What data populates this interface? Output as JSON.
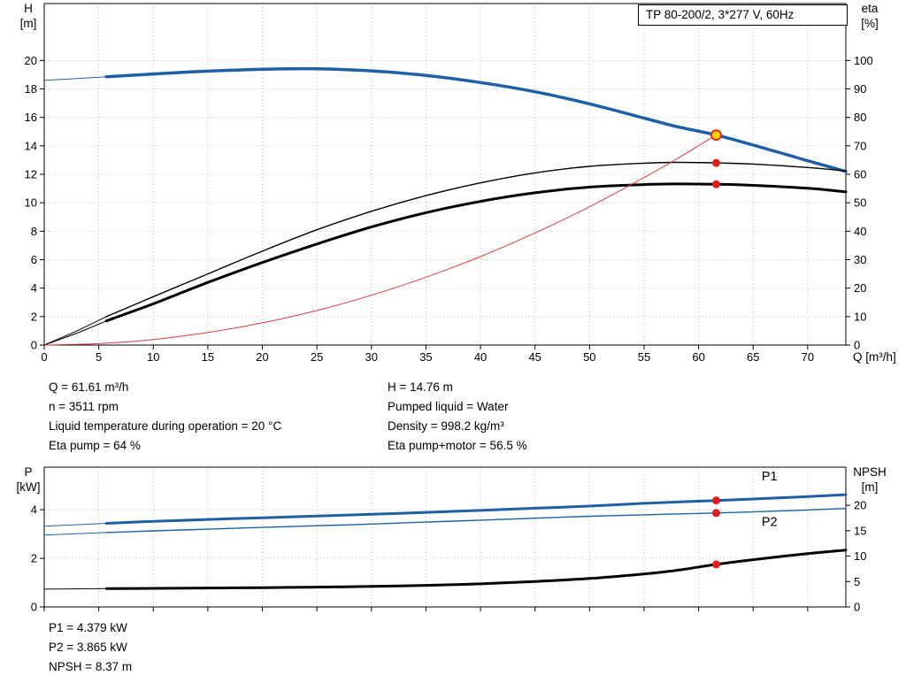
{
  "title_box": "TP 80-200/2, 3*277 V, 60Hz",
  "details": {
    "left": [
      "Q = 61.61 m³/h",
      "n = 3511 rpm",
      "Liquid temperature during operation = 20 °C",
      "Eta pump = 64 %"
    ],
    "right": [
      "H = 14.76 m",
      "Pumped liquid = Water",
      "Density = 998.2 kg/m³",
      "Eta pump+motor = 56.5 %"
    ]
  },
  "results": [
    "P1 = 4.379 kW",
    "P2 = 3.865 kW",
    "NPSH = 8.37 m"
  ],
  "chart_data": [
    {
      "type": "line",
      "name": "hq-performance-chart",
      "title": "TP 80-200/2, 3*277 V, 60Hz",
      "x": {
        "label": "Q [m³/h]",
        "min": 0,
        "max": 73.5,
        "ticks": [
          0,
          5,
          10,
          15,
          20,
          25,
          30,
          35,
          40,
          45,
          50,
          55,
          60,
          65,
          70
        ],
        "show_tick_labels": true
      },
      "y_left": {
        "label": "H",
        "unit": "[m]",
        "min": 0,
        "max": 24,
        "ticks": [
          0,
          2,
          4,
          6,
          8,
          10,
          12,
          14,
          16,
          18,
          20
        ]
      },
      "y_right": {
        "label": "eta",
        "unit": "[%]",
        "min": 0,
        "max": 120,
        "ticks": [
          0,
          10,
          20,
          30,
          40,
          50,
          60,
          70,
          80,
          90,
          100
        ]
      },
      "grid": true,
      "series": [
        {
          "name": "head-curve",
          "axis": "left",
          "color": "#1F5FA8",
          "width": 3.5,
          "solid_from": 5.7,
          "points": [
            [
              0,
              18.6
            ],
            [
              3,
              18.73
            ],
            [
              5.7,
              18.85
            ],
            [
              10,
              19.05
            ],
            [
              15,
              19.25
            ],
            [
              20,
              19.38
            ],
            [
              23,
              19.42
            ],
            [
              26,
              19.4
            ],
            [
              30,
              19.27
            ],
            [
              35,
              18.95
            ],
            [
              40,
              18.45
            ],
            [
              45,
              17.8
            ],
            [
              50,
              16.95
            ],
            [
              55,
              15.95
            ],
            [
              58,
              15.35
            ],
            [
              61.61,
              14.76
            ],
            [
              65,
              14.05
            ],
            [
              68,
              13.4
            ],
            [
              70,
              12.95
            ],
            [
              73.5,
              12.2
            ]
          ]
        },
        {
          "name": "eta-pump",
          "axis": "right",
          "color": "#000000",
          "width": 1.4,
          "solid_from": 5.7,
          "points": [
            [
              0,
              0
            ],
            [
              3,
              5
            ],
            [
              5.7,
              10
            ],
            [
              10,
              17
            ],
            [
              15,
              25
            ],
            [
              20,
              33
            ],
            [
              25,
              40.5
            ],
            [
              30,
              47
            ],
            [
              35,
              52.5
            ],
            [
              40,
              57
            ],
            [
              45,
              60.5
            ],
            [
              50,
              62.8
            ],
            [
              55,
              63.9
            ],
            [
              58,
              64.2
            ],
            [
              61.61,
              64
            ],
            [
              65,
              63.6
            ],
            [
              70,
              62.4
            ],
            [
              73.5,
              61.2
            ]
          ]
        },
        {
          "name": "eta-pump-motor",
          "axis": "right",
          "color": "#000000",
          "width": 3,
          "solid_from": 5.7,
          "points": [
            [
              0,
              0
            ],
            [
              3,
              4.2
            ],
            [
              5.7,
              8.5
            ],
            [
              10,
              14.5
            ],
            [
              15,
              22
            ],
            [
              20,
              29
            ],
            [
              25,
              35.5
            ],
            [
              30,
              41.5
            ],
            [
              35,
              46.5
            ],
            [
              40,
              50.5
            ],
            [
              45,
              53.5
            ],
            [
              50,
              55.5
            ],
            [
              55,
              56.4
            ],
            [
              58,
              56.6
            ],
            [
              61.61,
              56.5
            ],
            [
              65,
              56.1
            ],
            [
              70,
              55.1
            ],
            [
              73.5,
              53.8
            ]
          ]
        },
        {
          "name": "system-curve",
          "axis": "left",
          "color": "#E03A3A",
          "width": 1,
          "points": [
            [
              0,
              0
            ],
            [
              5,
              0.1
            ],
            [
              10,
              0.39
            ],
            [
              15,
              0.88
            ],
            [
              20,
              1.56
            ],
            [
              25,
              2.43
            ],
            [
              30,
              3.5
            ],
            [
              35,
              4.77
            ],
            [
              40,
              6.22
            ],
            [
              45,
              7.88
            ],
            [
              50,
              9.72
            ],
            [
              55,
              11.77
            ],
            [
              58,
              13.08
            ],
            [
              61.61,
              14.76
            ]
          ]
        }
      ],
      "markers": [
        {
          "name": "duty-point",
          "axis": "left",
          "q": 61.61,
          "v": 14.76,
          "r": 5.5,
          "fill": "#FFD400",
          "stroke": "#E01E1E"
        },
        {
          "name": "eta-pump-point",
          "axis": "right",
          "q": 61.61,
          "v": 64,
          "r": 4.5,
          "fill": "#E01E1E"
        },
        {
          "name": "eta-pump-motor-point",
          "axis": "right",
          "q": 61.61,
          "v": 56.5,
          "r": 4.5,
          "fill": "#E01E1E"
        }
      ]
    },
    {
      "type": "line",
      "name": "power-npsh-chart",
      "x": {
        "label": "",
        "min": 0,
        "max": 73.5,
        "ticks": [
          0,
          5,
          10,
          15,
          20,
          25,
          30,
          35,
          40,
          45,
          50,
          55,
          60,
          65,
          70
        ],
        "show_tick_labels": false
      },
      "y_left": {
        "label": "P",
        "unit": "[kW]",
        "min": 0,
        "max": 5.75,
        "ticks": [
          0,
          2,
          4
        ]
      },
      "y_right": {
        "label": "NPSH",
        "unit": "[m]",
        "min": 0,
        "max": 27.5,
        "ticks": [
          0,
          5,
          10,
          15,
          20
        ]
      },
      "grid": true,
      "series": [
        {
          "name": "p1",
          "axis": "left",
          "color": "#1F5FA8",
          "width": 3,
          "solid_from": 5.7,
          "label": {
            "text": "P1",
            "q": 66.5,
            "v": 5.2
          },
          "points": [
            [
              0,
              3.32
            ],
            [
              5.7,
              3.44
            ],
            [
              10,
              3.52
            ],
            [
              15,
              3.6
            ],
            [
              20,
              3.67
            ],
            [
              25,
              3.74
            ],
            [
              30,
              3.81
            ],
            [
              35,
              3.89
            ],
            [
              40,
              3.97
            ],
            [
              45,
              4.06
            ],
            [
              50,
              4.15
            ],
            [
              55,
              4.26
            ],
            [
              61.61,
              4.379
            ],
            [
              65,
              4.44
            ],
            [
              70,
              4.54
            ],
            [
              73.5,
              4.62
            ]
          ]
        },
        {
          "name": "p2",
          "axis": "left",
          "color": "#1F5FA8",
          "width": 1.4,
          "solid_from": 5.7,
          "label": {
            "text": "P2",
            "q": 66.5,
            "v": 3.33
          },
          "points": [
            [
              0,
              2.96
            ],
            [
              5.7,
              3.06
            ],
            [
              10,
              3.13
            ],
            [
              15,
              3.2
            ],
            [
              20,
              3.27
            ],
            [
              25,
              3.34
            ],
            [
              30,
              3.41
            ],
            [
              35,
              3.49
            ],
            [
              40,
              3.57
            ],
            [
              45,
              3.65
            ],
            [
              50,
              3.73
            ],
            [
              55,
              3.79
            ],
            [
              61.61,
              3.865
            ],
            [
              65,
              3.91
            ],
            [
              70,
              3.99
            ],
            [
              73.5,
              4.05
            ]
          ]
        },
        {
          "name": "npsh",
          "axis": "right",
          "color": "#000000",
          "width": 3,
          "solid_from": 5.7,
          "points": [
            [
              0,
              3.5
            ],
            [
              5.7,
              3.6
            ],
            [
              10,
              3.66
            ],
            [
              15,
              3.72
            ],
            [
              20,
              3.8
            ],
            [
              25,
              3.9
            ],
            [
              30,
              4.05
            ],
            [
              35,
              4.25
            ],
            [
              40,
              4.55
            ],
            [
              45,
              5
            ],
            [
              50,
              5.6
            ],
            [
              55,
              6.5
            ],
            [
              58,
              7.2
            ],
            [
              61.61,
              8.37
            ],
            [
              65,
              9.3
            ],
            [
              70,
              10.5
            ],
            [
              73.5,
              11.2
            ]
          ]
        }
      ],
      "markers": [
        {
          "name": "p1-point",
          "axis": "left",
          "q": 61.61,
          "v": 4.379,
          "r": 4.5,
          "fill": "#E01E1E"
        },
        {
          "name": "p2-point",
          "axis": "left",
          "q": 61.61,
          "v": 3.865,
          "r": 4.5,
          "fill": "#E01E1E"
        },
        {
          "name": "npsh-point",
          "axis": "right",
          "q": 61.61,
          "v": 8.37,
          "r": 4.5,
          "fill": "#E01E1E"
        }
      ]
    }
  ]
}
